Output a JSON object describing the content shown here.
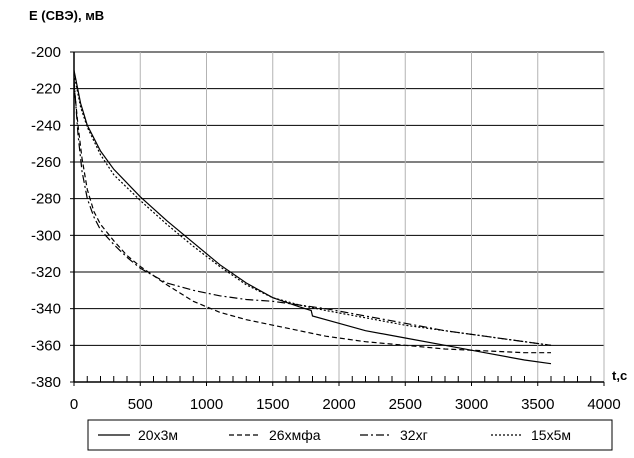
{
  "chart_data": {
    "type": "line",
    "ylabel": "E (СВЭ),  мВ",
    "xlabel": "t,c",
    "xlim": [
      0,
      4000
    ],
    "ylim": [
      -380,
      -200
    ],
    "x_ticks": [
      0,
      500,
      1000,
      1500,
      2000,
      2500,
      3000,
      3500,
      4000
    ],
    "y_ticks": [
      -200,
      -220,
      -240,
      -260,
      -280,
      -300,
      -320,
      -340,
      -360,
      -380
    ],
    "grid": true,
    "legend_position": "bottom",
    "series": [
      {
        "name": "20х3м",
        "style": "solid",
        "x": [
          0,
          50,
          100,
          200,
          300,
          500,
          700,
          900,
          1100,
          1300,
          1500,
          1700,
          1790,
          1800,
          2000,
          2200,
          2500,
          2800,
          3100,
          3400,
          3600
        ],
        "y": [
          -210,
          -228,
          -240,
          -254,
          -264,
          -279,
          -292,
          -304,
          -316,
          -326,
          -334,
          -339,
          -341,
          -344,
          -348,
          -352,
          -356,
          -360,
          -364,
          -368,
          -370
        ]
      },
      {
        "name": "26хмфа",
        "style": "dashed",
        "x": [
          0,
          30,
          60,
          100,
          150,
          200,
          300,
          400,
          500,
          700,
          900,
          1100,
          1300,
          1500,
          1700,
          1900,
          2200,
          2500,
          2800,
          3100,
          3400,
          3600
        ],
        "y": [
          -218,
          -240,
          -258,
          -275,
          -287,
          -294,
          -303,
          -311,
          -317,
          -327,
          -336,
          -342,
          -346,
          -349,
          -352,
          -355,
          -358,
          -360,
          -362,
          -363,
          -364,
          -364
        ]
      },
      {
        "name": "32хг",
        "style": "dashdot",
        "x": [
          0,
          30,
          60,
          100,
          150,
          200,
          300,
          400,
          500,
          700,
          900,
          1100,
          1300,
          1500,
          1700,
          1900,
          2200,
          2500,
          2800,
          3100,
          3400,
          3600
        ],
        "y": [
          -215,
          -245,
          -265,
          -280,
          -290,
          -297,
          -305,
          -312,
          -318,
          -326,
          -330,
          -333,
          -335,
          -336,
          -338,
          -340,
          -344,
          -348,
          -352,
          -355,
          -358,
          -360
        ]
      },
      {
        "name": "15х5м",
        "style": "dotted",
        "x": [
          0,
          50,
          100,
          200,
          300,
          500,
          700,
          900,
          1100,
          1300,
          1500,
          1700,
          1900,
          2200,
          2500,
          2800,
          3100,
          3400,
          3600
        ],
        "y": [
          -212,
          -230,
          -241,
          -256,
          -267,
          -281,
          -294,
          -306,
          -317,
          -327,
          -334,
          -338,
          -341,
          -345,
          -349,
          -352,
          -355,
          -358,
          -360
        ]
      }
    ]
  }
}
